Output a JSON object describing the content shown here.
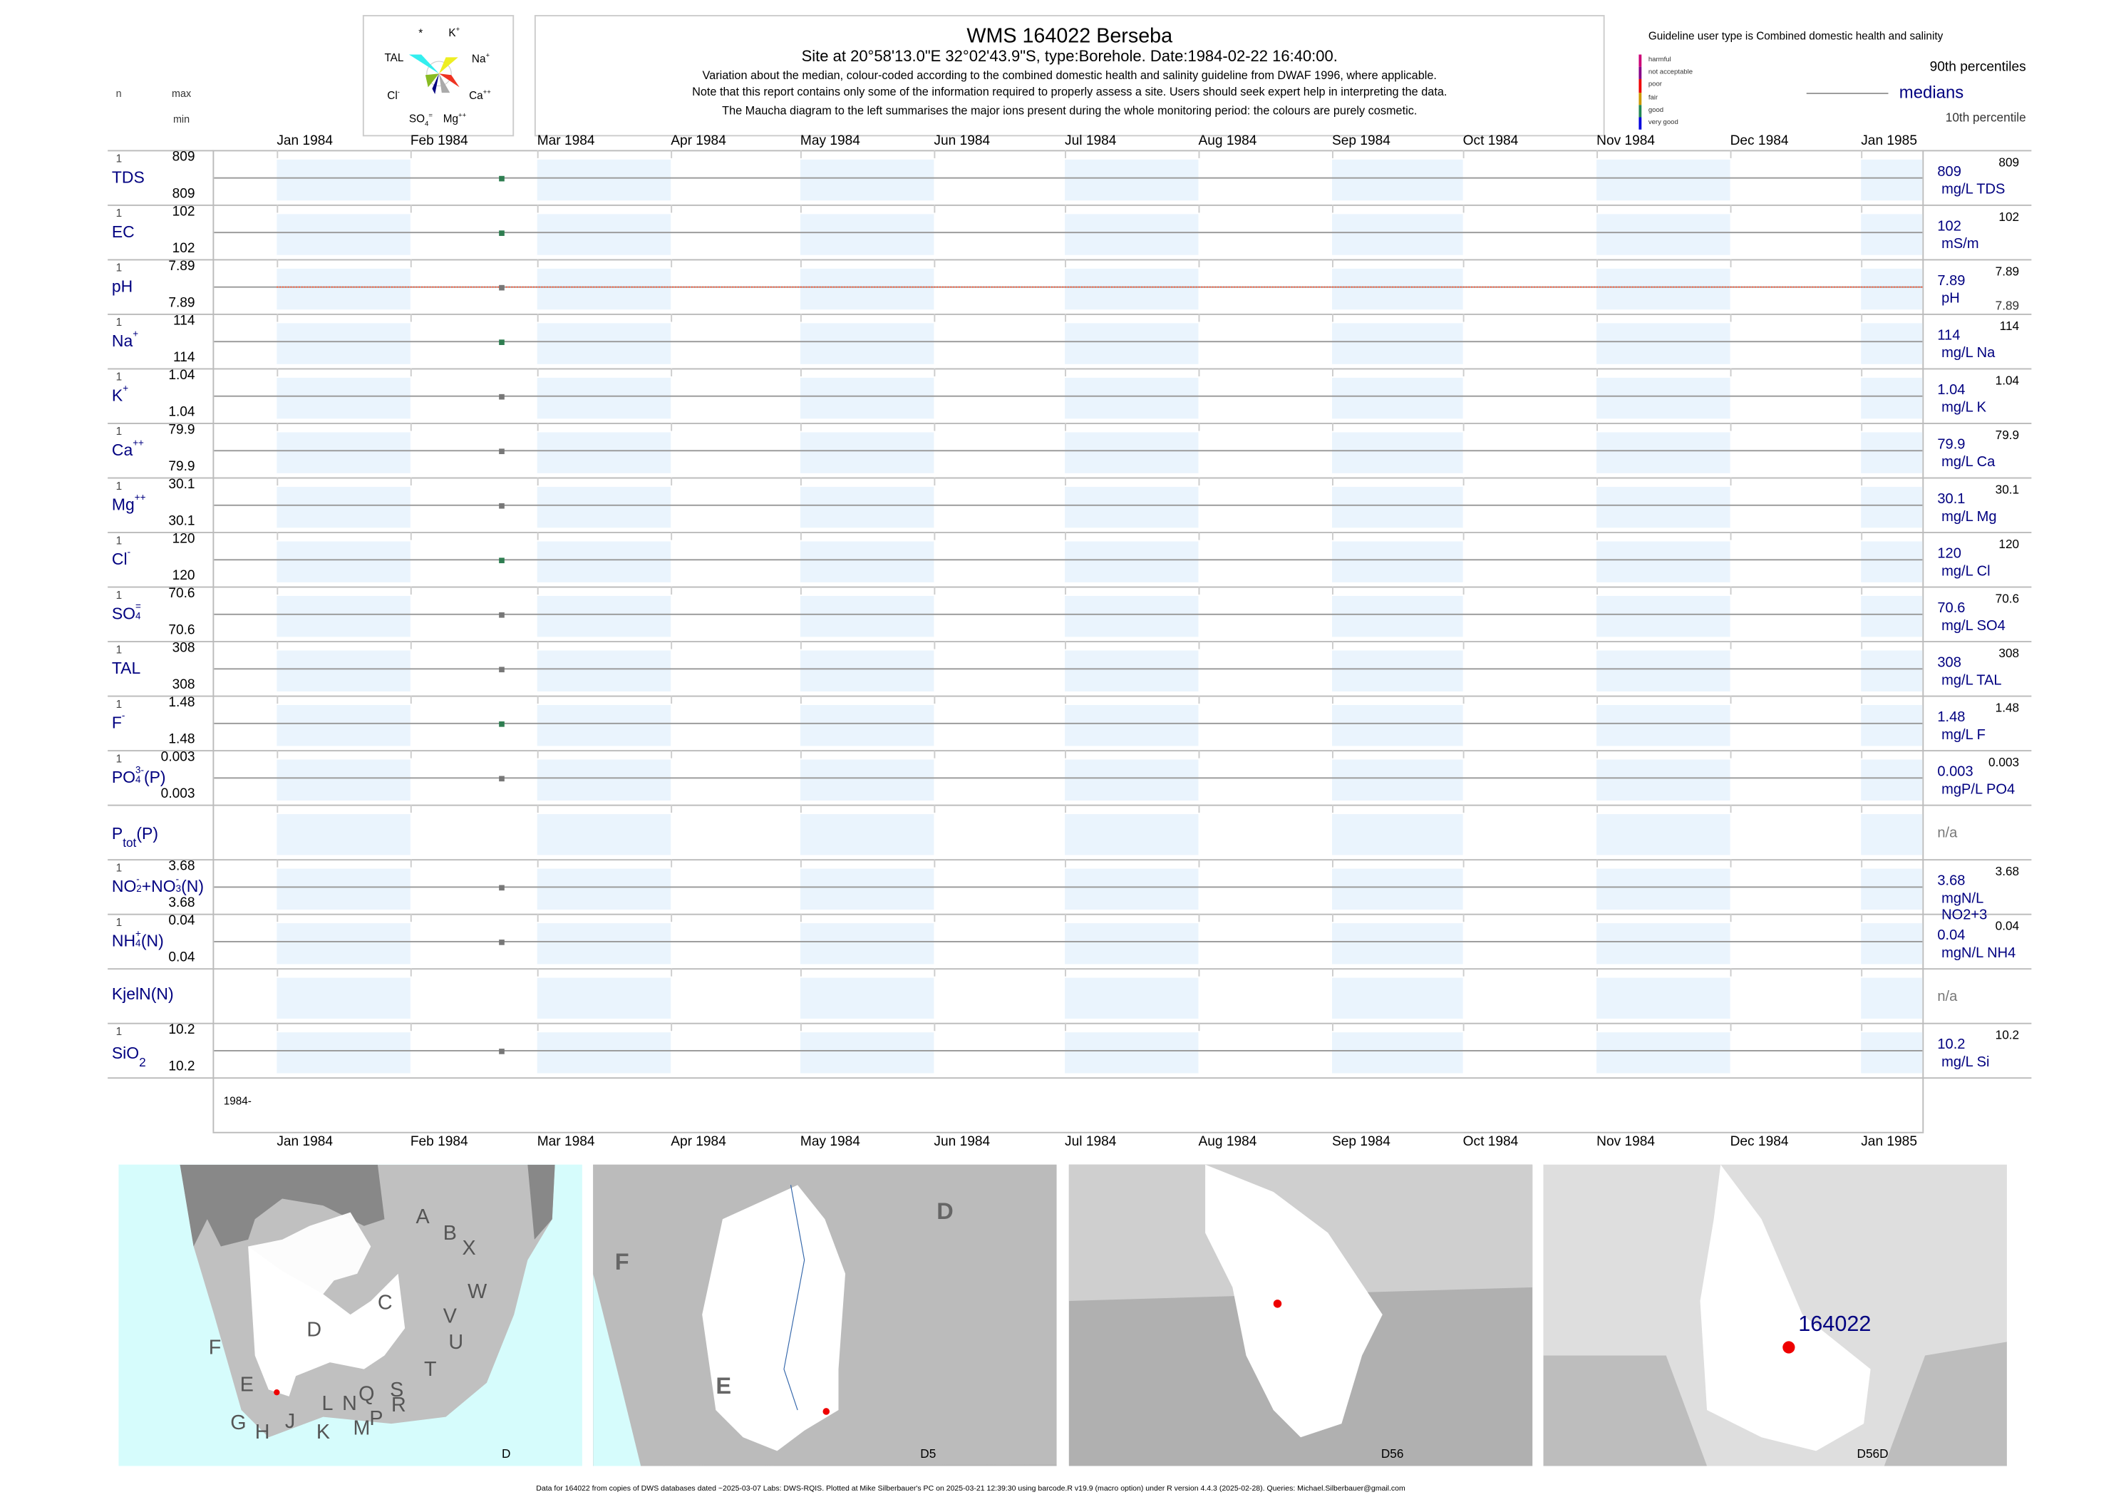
{
  "header": {
    "title": "WMS 164022  Berseba",
    "subtitle": "Site at 20°58'13.0\"E 32°02'43.9\"S, type:Borehole. Date:1984-02-22 16:40:00.",
    "lines": [
      "Variation about the median,  colour-coded according to the combined domestic health and salinity guideline from DWAF 1996, where applicable.",
      "Note that this report contains only some of the information required to properly assess a site. Users should seek expert help in interpreting the data.",
      "The Maucha diagram to the left summarises the major ions present during the whole monitoring period: the colours are purely cosmetic."
    ]
  },
  "maucha": {
    "labels": {
      "star": "*",
      "k": "K",
      "k_sup": "+",
      "tal": "TAL",
      "na": "Na",
      "na_sup": "+",
      "cl": "Cl",
      "cl_sup": "-",
      "ca": "Ca",
      "ca_sup": "++",
      "so4": "SO",
      "so4_sub": "4",
      "so4_sup": "=",
      "mg": "Mg",
      "mg_sup": "++"
    },
    "colors": {
      "tal": "#33eeee",
      "na": "#eeee22",
      "cl": "#88bb22",
      "ca": "#ee3322",
      "so4": "#000080",
      "mg": "#aaaaaa"
    }
  },
  "legend": {
    "title": "Guideline user type is Combined domestic health and salinity",
    "classes": [
      {
        "label": "harmful",
        "color": "#cc0077"
      },
      {
        "label": "not acceptable",
        "color": "#880088"
      },
      {
        "label": "poor",
        "color": "#ee0000"
      },
      {
        "label": "fair",
        "color": "#cc9900"
      },
      {
        "label": "good",
        "color": "#228855"
      },
      {
        "label": "very good",
        "color": "#0000dd"
      }
    ],
    "p90": "90th percentiles",
    "medians": "medians",
    "p10": "10th percentile"
  },
  "columns": {
    "n": "n",
    "max": "max",
    "min": "min"
  },
  "months": [
    "Jan 1984",
    "Feb 1984",
    "Mar 1984",
    "Apr 1984",
    "May 1984",
    "Jun 1984",
    "Jul 1984",
    "Aug 1984",
    "Sep 1984",
    "Oct 1984",
    "Nov 1984",
    "Dec 1984",
    "Jan 1985"
  ],
  "year_label": "1984-",
  "chart_data": {
    "type": "scatter",
    "x_range": [
      "1983-12-17",
      "1985-01-14"
    ],
    "sample_date": "1984-02-22",
    "series": [
      {
        "key": "TDS",
        "name": [
          {
            "t": "TDS"
          }
        ],
        "n": "1",
        "max": "809",
        "min": "809",
        "median": "809",
        "unit": "mg/L TDS",
        "p90": "809",
        "status": "good"
      },
      {
        "key": "EC",
        "name": [
          {
            "t": "EC"
          }
        ],
        "n": "1",
        "max": "102",
        "min": "102",
        "median": "102",
        "unit": "mS/m",
        "p90": "102",
        "status": "good"
      },
      {
        "key": "pH",
        "name": [
          {
            "t": "pH"
          }
        ],
        "n": "1",
        "max": "7.89",
        "min": "7.89",
        "median": "7.89",
        "unit": "pH",
        "p90": "7.89",
        "p10": "7.89",
        "status": "none",
        "guideline_line": true
      },
      {
        "key": "Na",
        "name": [
          {
            "t": "Na",
            "sup": "+"
          }
        ],
        "n": "1",
        "max": "114",
        "min": "114",
        "median": "114",
        "unit": "mg/L Na",
        "p90": "114",
        "status": "good"
      },
      {
        "key": "K",
        "name": [
          {
            "t": "K",
            "sup": "+"
          }
        ],
        "n": "1",
        "max": "1.04",
        "min": "1.04",
        "median": "1.04",
        "unit": "mg/L K",
        "p90": "1.04",
        "status": "none"
      },
      {
        "key": "Ca",
        "name": [
          {
            "t": "Ca",
            "sup": "++"
          }
        ],
        "n": "1",
        "max": "79.9",
        "min": "79.9",
        "median": "79.9",
        "unit": "mg/L Ca",
        "p90": "79.9",
        "status": "none"
      },
      {
        "key": "Mg",
        "name": [
          {
            "t": "Mg",
            "sup": "++"
          }
        ],
        "n": "1",
        "max": "30.1",
        "min": "30.1",
        "median": "30.1",
        "unit": "mg/L Mg",
        "p90": "30.1",
        "status": "none"
      },
      {
        "key": "Cl",
        "name": [
          {
            "t": "Cl",
            "sup": "-"
          }
        ],
        "n": "1",
        "max": "120",
        "min": "120",
        "median": "120",
        "unit": "mg/L Cl",
        "p90": "120",
        "status": "good"
      },
      {
        "key": "SO4",
        "name": [
          {
            "t": "SO",
            "sup": "=",
            "sub": "4"
          }
        ],
        "n": "1",
        "max": "70.6",
        "min": "70.6",
        "median": "70.6",
        "unit": "mg/L SO4",
        "p90": "70.6",
        "status": "none"
      },
      {
        "key": "TAL",
        "name": [
          {
            "t": "TAL"
          }
        ],
        "n": "1",
        "max": "308",
        "min": "308",
        "median": "308",
        "unit": "mg/L TAL",
        "p90": "308",
        "status": "none"
      },
      {
        "key": "F",
        "name": [
          {
            "t": "F",
            "sup": "-"
          }
        ],
        "n": "1",
        "max": "1.48",
        "min": "1.48",
        "median": "1.48",
        "unit": "mg/L F",
        "p90": "1.48",
        "status": "good"
      },
      {
        "key": "PO4",
        "name": [
          {
            "t": "PO",
            "sup": "3-",
            "sub": "4"
          },
          {
            "t": "(P)"
          }
        ],
        "n": "1",
        "max": "0.003",
        "min": "0.003",
        "median": "0.003",
        "unit": "mgP/L PO4",
        "p90": "0.003",
        "status": "none"
      },
      {
        "key": "Ptot",
        "name": [
          {
            "t": "P"
          },
          {
            "t": "",
            "sub": "tot"
          },
          {
            "t": "(P)"
          }
        ],
        "na": "n/a"
      },
      {
        "key": "NOx",
        "name": [
          {
            "t": "NO",
            "sup": "-",
            "sub": "2"
          },
          {
            "t": "+NO",
            "sup": "-",
            "sub": "3"
          },
          {
            "t": "(N)"
          }
        ],
        "n": "1",
        "max": "3.68",
        "min": "3.68",
        "median": "3.68",
        "unit": "mgN/L NO2+3",
        "p90": "3.68",
        "status": "none"
      },
      {
        "key": "NH4",
        "name": [
          {
            "t": "NH",
            "sup": "+",
            "sub": "4"
          },
          {
            "t": "(N)"
          }
        ],
        "n": "1",
        "max": "0.04",
        "min": "0.04",
        "median": "0.04",
        "unit": "mgN/L NH4",
        "p90": "0.04",
        "status": "none"
      },
      {
        "key": "KjelN",
        "name": [
          {
            "t": "KjelN(N)"
          }
        ],
        "na": "n/a"
      },
      {
        "key": "SiO2",
        "name": [
          {
            "t": "SiO"
          },
          {
            "t": "",
            "sub": "2"
          }
        ],
        "n": "1",
        "max": "10.2",
        "min": "10.2",
        "median": "10.2",
        "unit": "mg/L Si",
        "p90": "10.2",
        "status": "none"
      }
    ]
  },
  "maps": [
    {
      "caption": "D",
      "letters": [
        "A",
        "B",
        "X",
        "W",
        "C",
        "V",
        "U",
        "D",
        "F",
        "T",
        "E",
        "S",
        "Q",
        "L",
        "N",
        "R",
        "P",
        "G",
        "H",
        "J",
        "K",
        "M"
      ]
    },
    {
      "caption": "D5",
      "letters": [
        "D",
        "F",
        "E"
      ]
    },
    {
      "caption": "D56",
      "letters": []
    },
    {
      "caption": "D56D",
      "letters": [],
      "site": "164022"
    }
  ],
  "footer": "Data for 164022 from copies of DWS databases dated ~2025-03-07 Labs: DWS-RQIS. Plotted at Mike Silberbauer's PC on 2025-03-21 12:39:30 using barcode.R v19.9 (macro option) under R version 4.4.3 (2025-02-28). Queries: Michael.Silberbauer@gmail.com",
  "colors": {
    "good": "#2e7d50",
    "none": "#777777",
    "band": "#eaf4fd",
    "navy": "#000080",
    "sea": "#d6fcfc"
  }
}
